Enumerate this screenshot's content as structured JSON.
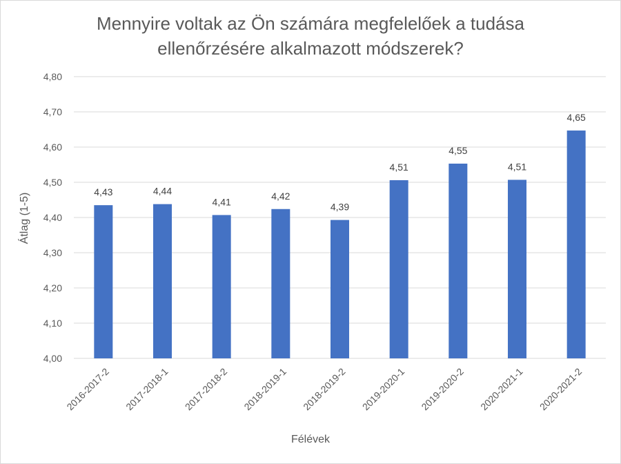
{
  "chart_data": {
    "type": "bar",
    "title": "Mennyire voltak az Ön számára megfelelőek a tudása ellenőrzésére alkalmazott módszerek?",
    "title_lines": [
      "Mennyire voltak az Ön számára megfelelőek a tudása",
      "ellenőrzésére alkalmazott módszerek?"
    ],
    "xlabel": "Félévek",
    "ylabel": "Átlag (1-5)",
    "categories": [
      "2016-2017-2",
      "2017-2018-1",
      "2017-2018-2",
      "2018-2019-1",
      "2018-2019-2",
      "2019-2020-1",
      "2019-2020-2",
      "2020-2021-1",
      "2020-2021-2"
    ],
    "values": [
      4.435,
      4.438,
      4.407,
      4.424,
      4.393,
      4.506,
      4.553,
      4.507,
      4.647
    ],
    "data_labels": [
      "4,43",
      "4,44",
      "4,41",
      "4,42",
      "4,39",
      "4,51",
      "4,55",
      "4,51",
      "4,65"
    ],
    "ylim": [
      4.0,
      4.8
    ],
    "yticks": [
      "4,00",
      "4,10",
      "4,20",
      "4,30",
      "4,40",
      "4,50",
      "4,60",
      "4,70",
      "4,80"
    ],
    "grid": true,
    "legend": "none",
    "colors": {
      "bar": "#4472C4",
      "grid": "#d9d9d9",
      "text": "#595959"
    }
  }
}
